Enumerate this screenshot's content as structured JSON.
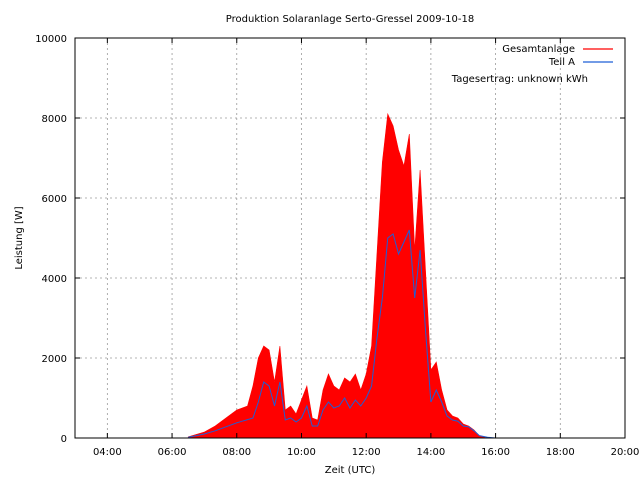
{
  "chart_data": {
    "type": "area",
    "title": "Produktion Solaranlage Serto-Gressel 2009-10-18",
    "xlabel": "Zeit (UTC)",
    "ylabel": "Leistung [W]",
    "xlim": [
      "03:00",
      "20:00"
    ],
    "ylim": [
      0,
      10000
    ],
    "x_ticks": [
      "04:00",
      "06:00",
      "08:00",
      "10:00",
      "12:00",
      "14:00",
      "16:00",
      "18:00",
      "20:00"
    ],
    "y_ticks": [
      0,
      2000,
      4000,
      6000,
      8000,
      10000
    ],
    "grid": true,
    "legend_position": "top-right",
    "annotation": "Tagesertrag: unknown kWh",
    "series": [
      {
        "name": "Gesamtanlage",
        "color": "#ff0000",
        "style": "filled-area",
        "x": [
          "06:30",
          "07:00",
          "07:20",
          "07:40",
          "07:50",
          "08:00",
          "08:10",
          "08:20",
          "08:30",
          "08:40",
          "08:50",
          "09:00",
          "09:10",
          "09:20",
          "09:30",
          "09:40",
          "09:50",
          "10:00",
          "10:10",
          "10:20",
          "10:30",
          "10:40",
          "10:50",
          "11:00",
          "11:10",
          "11:20",
          "11:30",
          "11:40",
          "11:50",
          "12:00",
          "12:10",
          "12:20",
          "12:30",
          "12:40",
          "12:50",
          "13:00",
          "13:10",
          "13:20",
          "13:30",
          "13:40",
          "13:50",
          "14:00",
          "14:10",
          "14:20",
          "14:30",
          "14:40",
          "14:50",
          "15:00",
          "15:10",
          "15:20",
          "15:30",
          "15:45"
        ],
        "values": [
          30,
          150,
          300,
          500,
          600,
          700,
          750,
          800,
          1300,
          2000,
          2300,
          2200,
          1400,
          2300,
          700,
          800,
          600,
          950,
          1300,
          500,
          450,
          1200,
          1600,
          1300,
          1200,
          1500,
          1400,
          1600,
          1200,
          1600,
          2300,
          4600,
          6900,
          8100,
          7800,
          7200,
          6800,
          7600,
          4700,
          6700,
          4200,
          1700,
          1900,
          1200,
          700,
          550,
          500,
          350,
          300,
          200,
          50,
          0
        ]
      },
      {
        "name": "Teil A",
        "color": "#1f5fd6",
        "style": "line",
        "x": [
          "06:30",
          "07:00",
          "07:20",
          "07:40",
          "07:50",
          "08:00",
          "08:10",
          "08:20",
          "08:30",
          "08:40",
          "08:50",
          "09:00",
          "09:10",
          "09:20",
          "09:30",
          "09:40",
          "09:50",
          "10:00",
          "10:10",
          "10:20",
          "10:30",
          "10:40",
          "10:50",
          "11:00",
          "11:10",
          "11:20",
          "11:30",
          "11:40",
          "11:50",
          "12:00",
          "12:10",
          "12:20",
          "12:30",
          "12:40",
          "12:50",
          "13:00",
          "13:10",
          "13:20",
          "13:30",
          "13:40",
          "13:50",
          "14:00",
          "14:10",
          "14:20",
          "14:30",
          "14:40",
          "14:50",
          "15:00",
          "15:10",
          "15:20",
          "15:30",
          "15:45",
          "16:00"
        ],
        "values": [
          20,
          100,
          180,
          280,
          330,
          380,
          420,
          460,
          500,
          900,
          1400,
          1300,
          800,
          1400,
          450,
          500,
          400,
          500,
          800,
          300,
          300,
          700,
          900,
          750,
          800,
          1000,
          750,
          950,
          800,
          1000,
          1300,
          2500,
          3500,
          5000,
          5100,
          4600,
          4900,
          5200,
          3500,
          4700,
          2700,
          900,
          1200,
          900,
          550,
          450,
          420,
          300,
          280,
          180,
          60,
          20,
          0
        ]
      }
    ]
  }
}
